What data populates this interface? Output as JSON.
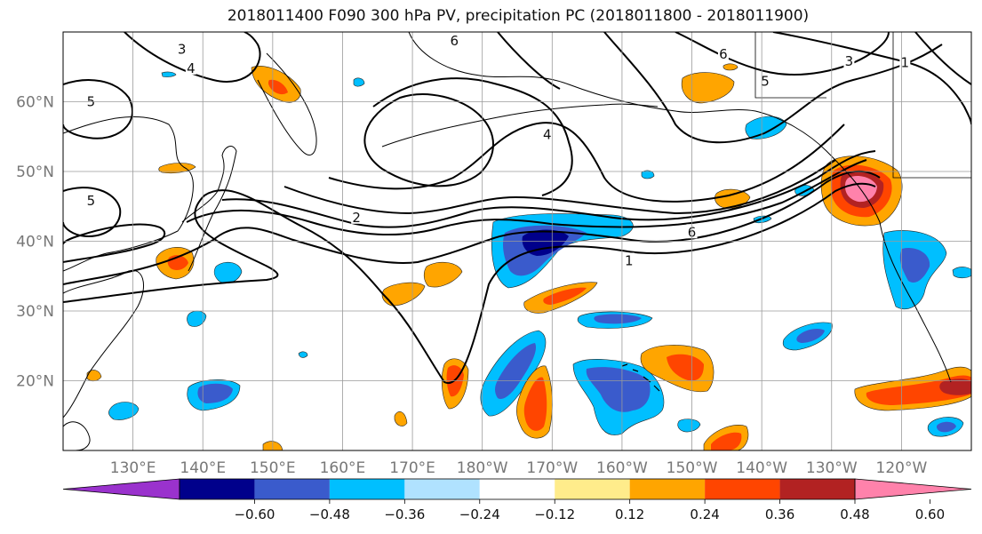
{
  "title": "2018011400 F090 300 hPa PV, precipitation PC (2018011800 - 2018011900)",
  "map": {
    "lon_range": [
      120,
      250
    ],
    "lat_range": [
      10,
      70
    ],
    "lon_ticks": [
      {
        "lon": 130,
        "label": "130°E"
      },
      {
        "lon": 140,
        "label": "140°E"
      },
      {
        "lon": 150,
        "label": "150°E"
      },
      {
        "lon": 160,
        "label": "160°E"
      },
      {
        "lon": 170,
        "label": "170°E"
      },
      {
        "lon": 180,
        "label": "180°W"
      },
      {
        "lon": 190,
        "label": "170°W"
      },
      {
        "lon": 200,
        "label": "160°W"
      },
      {
        "lon": 210,
        "label": "150°W"
      },
      {
        "lon": 220,
        "label": "140°W"
      },
      {
        "lon": 230,
        "label": "130°W"
      },
      {
        "lon": 240,
        "label": "120°W"
      }
    ],
    "lat_ticks": [
      {
        "lat": 20,
        "label": "20°N"
      },
      {
        "lat": 30,
        "label": "30°N"
      },
      {
        "lat": 40,
        "label": "40°N"
      },
      {
        "lat": 50,
        "label": "50°N"
      },
      {
        "lat": 60,
        "label": "60°N"
      }
    ],
    "grid": true,
    "contour_labels": [
      {
        "text": "3",
        "lon": 137.0,
        "lat": 67.5
      },
      {
        "text": "4",
        "lon": 138.3,
        "lat": 64.8
      },
      {
        "text": "5",
        "lon": 124.0,
        "lat": 60.0
      },
      {
        "text": "5",
        "lon": 124.0,
        "lat": 45.8
      },
      {
        "text": "6",
        "lon": 176.0,
        "lat": 68.7
      },
      {
        "text": "4",
        "lon": 189.3,
        "lat": 55.3
      },
      {
        "text": "2",
        "lon": 162.0,
        "lat": 43.4
      },
      {
        "text": "1",
        "lon": 201.0,
        "lat": 37.2
      },
      {
        "text": "6",
        "lon": 210.0,
        "lat": 41.3
      },
      {
        "text": "6",
        "lon": 214.5,
        "lat": 66.8
      },
      {
        "text": "5",
        "lon": 220.5,
        "lat": 62.9
      },
      {
        "text": "3",
        "lon": 232.5,
        "lat": 65.8
      },
      {
        "text": "1",
        "lon": 240.5,
        "lat": 65.6
      }
    ],
    "levels": [
      {
        "name": "le -0.60",
        "color": "#9a32cd"
      },
      {
        "name": "-0.60 to -0.48",
        "color": "#00008b"
      },
      {
        "name": "-0.48 to -0.36",
        "color": "#3a5bcc"
      },
      {
        "name": "-0.36 to -0.24",
        "color": "#00bfff"
      },
      {
        "name": "-0.24 to -0.12",
        "color": "#b0e2ff"
      },
      {
        "name": "-0.12 to 0.12",
        "color": "#ffffff"
      },
      {
        "name": "0.12 to 0.24",
        "color": "#ffec8b"
      },
      {
        "name": "0.24 to 0.36",
        "color": "#ffa500"
      },
      {
        "name": "0.36 to 0.48",
        "color": "#ff4500"
      },
      {
        "name": "0.48 to 0.60",
        "color": "#b22222"
      },
      {
        "name": "ge 0.60",
        "color": "#ff82ab"
      }
    ]
  },
  "colorbar": {
    "tick_labels": [
      "−0.60",
      "−0.48",
      "−0.36",
      "−0.24",
      "−0.12",
      "0.12",
      "0.24",
      "0.36",
      "0.48",
      "0.60"
    ]
  }
}
